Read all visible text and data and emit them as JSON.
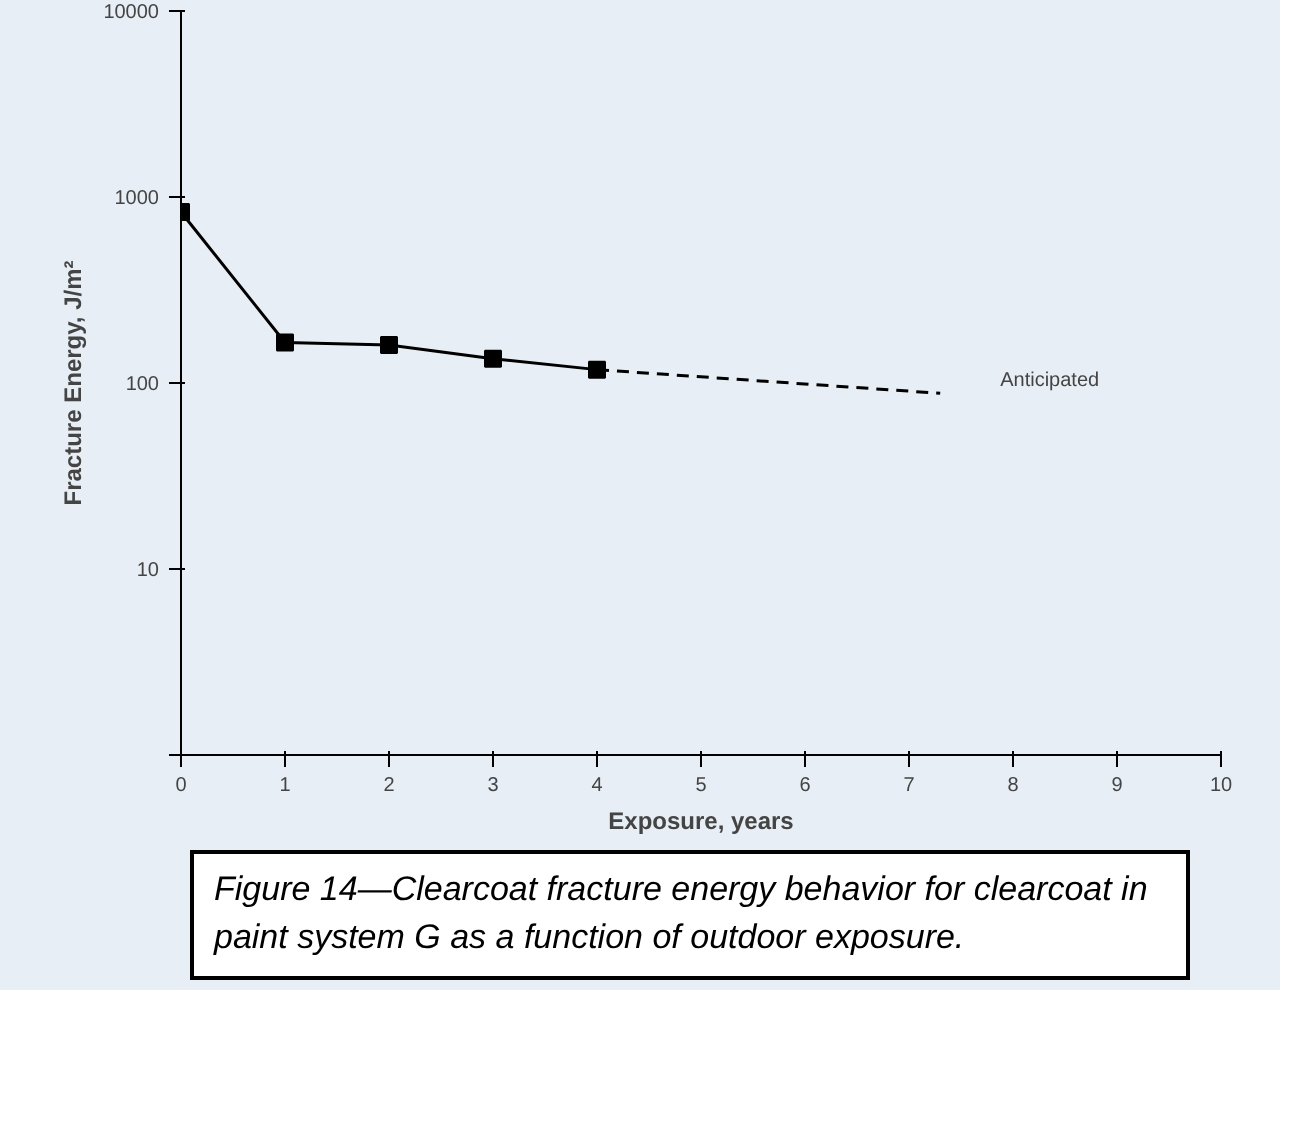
{
  "chart_data": {
    "type": "line",
    "xlabel": "Exposure, years",
    "ylabel": "Fracture Energy, J/m²",
    "log": "y",
    "grid": false,
    "xlim": [
      0,
      10
    ],
    "xticks": [
      0,
      1,
      2,
      3,
      4,
      5,
      6,
      7,
      8,
      9,
      10
    ],
    "ylim": [
      1,
      10000
    ],
    "yticks": [
      {
        "value": 1,
        "label": null
      },
      10,
      100,
      1000,
      10000
    ],
    "series": [
      {
        "x": [
          0,
          1,
          2,
          3,
          4
        ],
        "values": [
          830,
          165,
          160,
          135,
          118
        ],
        "color": "#000000",
        "marker": "square",
        "line_style": "solid"
      },
      {
        "x": [
          4,
          7.3
        ],
        "values": [
          118,
          88
        ],
        "color": "#000000",
        "marker": "none",
        "line_style": "dashed"
      }
    ],
    "annotations": [
      "Anticipated",
      "Figure 14—Clearcoat fracture energy behavior for clearcoat in paint system G as a function of outdoor exposure."
    ]
  }
}
